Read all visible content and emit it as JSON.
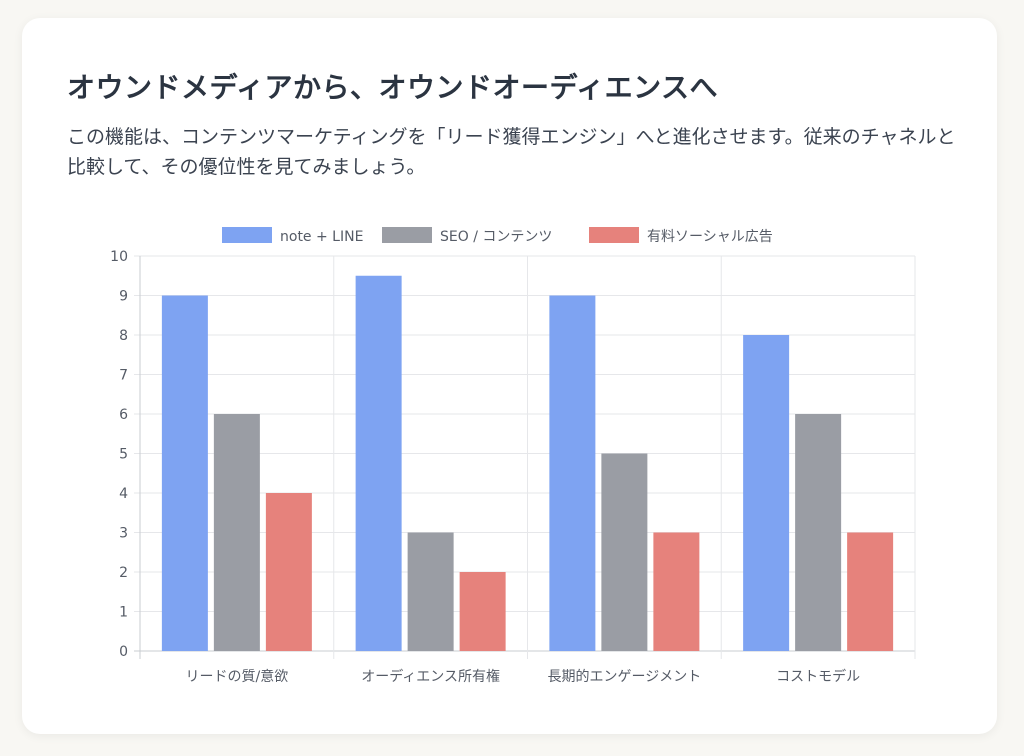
{
  "header": {
    "title": "オウンドメディアから、オウンドオーディエンスへ",
    "description": "この機能は、コンテンツマーケティングを「リード獲得エンジン」へと進化させます。従来のチャネルと比較して、その優位性を見てみましょう。"
  },
  "chart_data": {
    "type": "bar",
    "categories": [
      "リードの質/意欲",
      "オーディエンス所有権",
      "長期的エンゲージメント",
      "コストモデル"
    ],
    "series": [
      {
        "name": "note + LINE",
        "values": [
          9,
          9.5,
          9,
          8
        ],
        "color": "#7ea3f2"
      },
      {
        "name": "SEO / コンテンツ",
        "values": [
          6,
          3,
          5,
          6
        ],
        "color": "#9a9da4"
      },
      {
        "name": "有料ソーシャル広告",
        "values": [
          4,
          2,
          3,
          3
        ],
        "color": "#e6827c"
      }
    ],
    "ylim": [
      0,
      10
    ],
    "yticks": [
      "0",
      "1",
      "2",
      "3",
      "4",
      "5",
      "6",
      "7",
      "8",
      "9",
      "10"
    ],
    "title": "",
    "xlabel": "",
    "ylabel": "",
    "grid": true,
    "legend": "top-center"
  }
}
